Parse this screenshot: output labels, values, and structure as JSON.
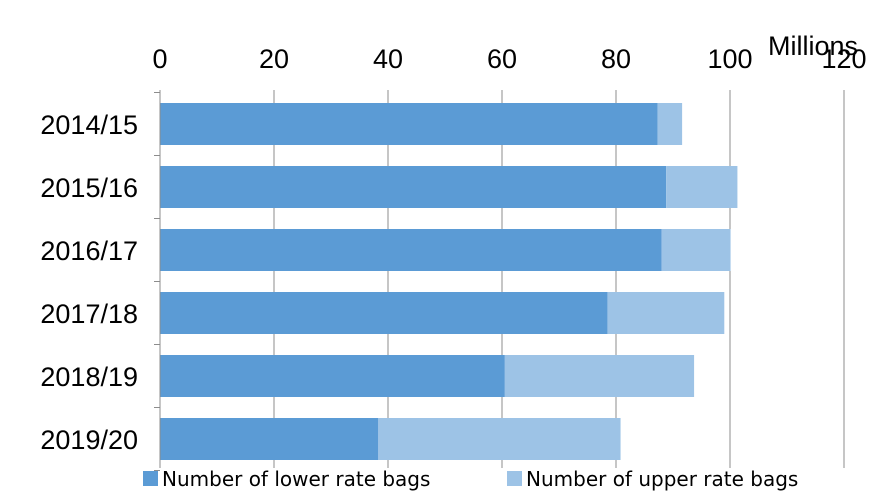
{
  "chart_data": {
    "type": "bar",
    "orientation": "horizontal",
    "stacked": true,
    "title": "",
    "unit_label": "Millions",
    "categories": [
      "2014/15",
      "2015/16",
      "2016/17",
      "2017/18",
      "2018/19",
      "2019/20"
    ],
    "series": [
      {
        "name": "Number of lower rate bags",
        "color": "#5b9bd5",
        "values": [
          87.3,
          88.8,
          88.0,
          78.5,
          60.5,
          38.3
        ]
      },
      {
        "name": "Number of upper rate bags",
        "color": "#9dc3e6",
        "values": [
          4.3,
          12.5,
          12.1,
          20.5,
          33.2,
          42.5
        ]
      }
    ],
    "xlim": [
      0,
      120
    ],
    "xticks": [
      0,
      20,
      40,
      60,
      80,
      100,
      120
    ],
    "xaxis_position": "top",
    "grid": true,
    "legend_position": "bottom"
  }
}
